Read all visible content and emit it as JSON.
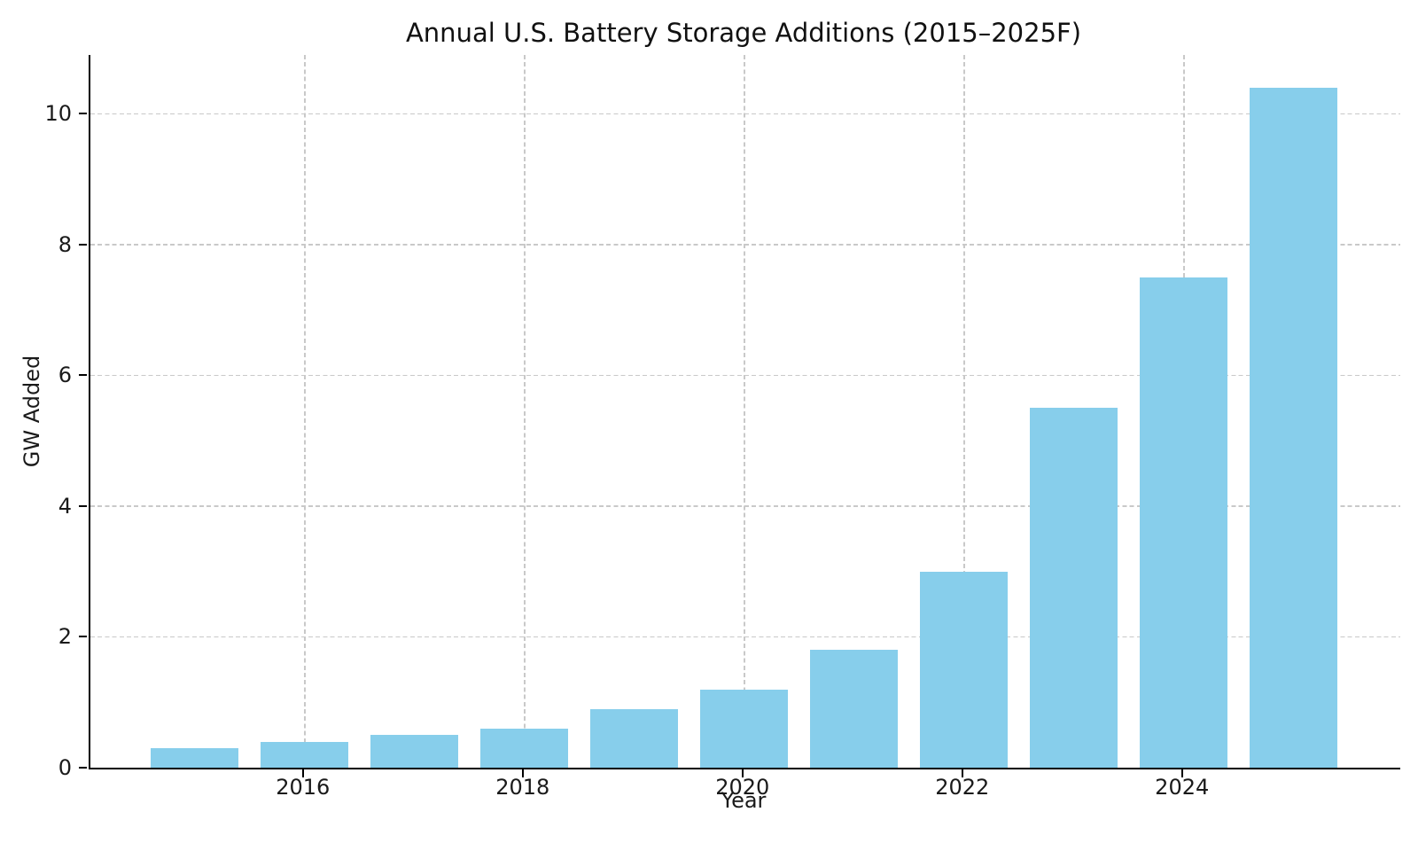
{
  "chart_data": {
    "type": "bar",
    "title": "Annual U.S. Battery Storage Additions (2015–2025F)",
    "xlabel": "Year",
    "ylabel": "GW Added",
    "categories": [
      2015,
      2016,
      2017,
      2018,
      2019,
      2020,
      2021,
      2022,
      2023,
      2024,
      2025
    ],
    "values": [
      0.3,
      0.4,
      0.5,
      0.6,
      0.9,
      1.2,
      1.8,
      3.0,
      5.5,
      7.5,
      10.4
    ],
    "bar_color": "#87CEEB",
    "bar_width_years": 0.8,
    "xticks": [
      2016,
      2018,
      2020,
      2022,
      2024
    ],
    "yticks": [
      0,
      2,
      4,
      6,
      8,
      10
    ],
    "xlim": [
      2014.05,
      2025.97
    ],
    "ylim": [
      0,
      10.9
    ],
    "grid": "on",
    "grid_style": "dashed",
    "grid_color": "#c9c9c9",
    "spine_color": "#000000",
    "background_color": "#ffffff",
    "legend_position": "none"
  }
}
